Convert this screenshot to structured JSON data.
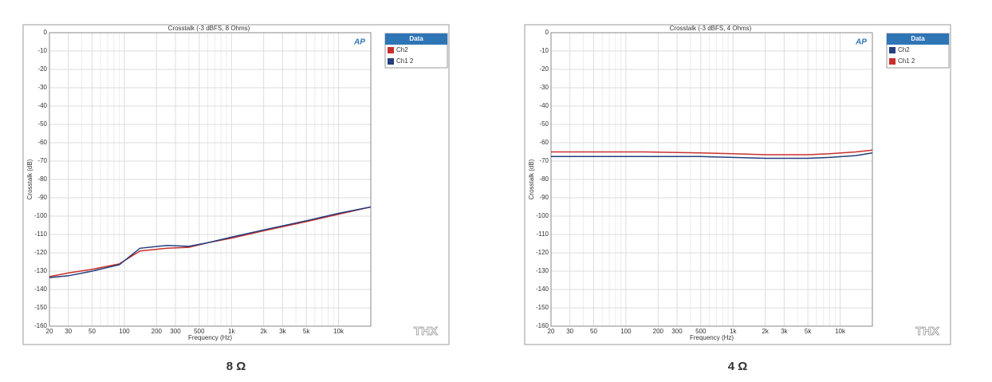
{
  "chart_data": [
    {
      "type": "line",
      "title": "Crosstalk (-3 dBFS, 8 Ohms)",
      "x_label": "Frequency (Hz)",
      "y_label": "Crosstalk (dB)",
      "legend_title": "Data",
      "logo_top": "AP",
      "logo_bottom": "THX",
      "caption": "8 Ω",
      "log_x": true,
      "grid": true,
      "legend": "upper right",
      "xlim": [
        20,
        20000
      ],
      "ylim": [
        -160,
        0
      ],
      "xticks": [
        20,
        30,
        50,
        100,
        200,
        300,
        500,
        {
          "value": 1000,
          "label": "1k"
        },
        {
          "value": 2000,
          "label": "2k"
        },
        {
          "value": 3000,
          "label": "3k"
        },
        {
          "value": 5000,
          "label": "5k"
        },
        {
          "value": 10000,
          "label": "10k"
        }
      ],
      "x_minor_ticks": [
        40,
        60,
        70,
        80,
        90,
        400,
        600,
        700,
        800,
        900,
        4000,
        6000,
        7000,
        8000,
        9000
      ],
      "yticks": [
        0,
        -10,
        -20,
        -30,
        -40,
        -50,
        -60,
        -70,
        -80,
        -90,
        -100,
        -110,
        -120,
        -130,
        -140,
        -150,
        -160
      ],
      "x": [
        20,
        30,
        50,
        90,
        140,
        250,
        400,
        600,
        1000,
        2000,
        5000,
        10000,
        20000
      ],
      "series": [
        {
          "name": "Ch2",
          "color": "#c8302f",
          "values": [
            -133,
            -131,
            -129,
            -126,
            -119,
            -117.5,
            -117,
            -114.5,
            -112,
            -108,
            -103,
            -99,
            -95
          ]
        },
        {
          "name": "Ch1 2",
          "color": "#233f7e",
          "values": [
            -133.5,
            -132.5,
            -130,
            -126.5,
            -117.5,
            -116,
            -116.5,
            -114.5,
            -111.5,
            -107.5,
            -102.5,
            -98.5,
            -95
          ]
        }
      ]
    },
    {
      "type": "line",
      "title": "Crosstalk (-3 dBFS, 4 Ohms)",
      "x_label": "Frequency (Hz)",
      "y_label": "Crosstalk (dB)",
      "legend_title": "Data",
      "logo_top": "AP",
      "logo_bottom": "THX",
      "caption": "4 Ω",
      "log_x": true,
      "grid": true,
      "legend": "upper right",
      "xlim": [
        20,
        20000
      ],
      "ylim": [
        -160,
        0
      ],
      "xticks": [
        20,
        30,
        50,
        100,
        200,
        300,
        500,
        {
          "value": 1000,
          "label": "1k"
        },
        {
          "value": 2000,
          "label": "2k"
        },
        {
          "value": 3000,
          "label": "3k"
        },
        {
          "value": 5000,
          "label": "5k"
        },
        {
          "value": 10000,
          "label": "10k"
        }
      ],
      "x_minor_ticks": [
        40,
        60,
        70,
        80,
        90,
        400,
        600,
        700,
        800,
        900,
        4000,
        6000,
        7000,
        8000,
        9000
      ],
      "yticks": [
        0,
        -10,
        -20,
        -30,
        -40,
        -50,
        -60,
        -70,
        -80,
        -90,
        -100,
        -110,
        -120,
        -130,
        -140,
        -150,
        -160
      ],
      "x": [
        20,
        50,
        150,
        500,
        1000,
        2000,
        5000,
        8000,
        14000,
        20000
      ],
      "series": [
        {
          "name": "Ch2",
          "color": "#233f7e",
          "values": [
            -67.5,
            -67.5,
            -67.5,
            -67.5,
            -68,
            -68.5,
            -68.5,
            -68,
            -67,
            -65.5
          ]
        },
        {
          "name": "Ch1 2",
          "color": "#c8302f",
          "values": [
            -65,
            -65,
            -65,
            -65.5,
            -66,
            -66.5,
            -66.5,
            -66,
            -65,
            -64
          ]
        }
      ]
    }
  ]
}
